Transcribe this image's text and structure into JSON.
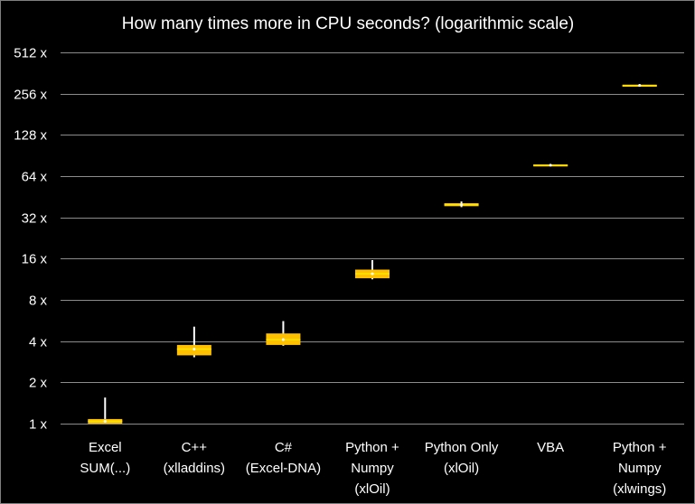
{
  "chart_data": {
    "type": "box",
    "title": "How many times more in CPU seconds? (logarithmic scale)",
    "xlabel": "",
    "ylabel": "",
    "scale": "log2",
    "ylim": [
      1,
      512
    ],
    "y_ticks": [
      1,
      2,
      4,
      8,
      16,
      32,
      64,
      128,
      256,
      512
    ],
    "y_tick_labels": [
      "1 x",
      "2 x",
      "4 x",
      "8 x",
      "16 x",
      "32 x",
      "64 x",
      "128 x",
      "256 x",
      "512 x"
    ],
    "grid": true,
    "legend": "none",
    "box_color": "#ffc000",
    "box_highlight": "#ffe600",
    "whisker_color": "#ffffff",
    "categories": [
      [
        "Excel",
        "SUM(...)"
      ],
      [
        "C++",
        "(xlladdins)"
      ],
      [
        "C#",
        "(Excel-DNA)"
      ],
      [
        "Python +",
        "Numpy",
        "(xlOil)"
      ],
      [
        "Python Only",
        "(xlOil)"
      ],
      [
        "VBA"
      ],
      [
        "Python +",
        "Numpy",
        "(xlwings)"
      ]
    ],
    "boxes": [
      {
        "min": 1.0,
        "q1": 1.0,
        "median": 1.04,
        "q3": 1.08,
        "max": 1.55
      },
      {
        "min": 3.05,
        "q1": 3.15,
        "median": 3.5,
        "q3": 3.75,
        "max": 5.1
      },
      {
        "min": 3.7,
        "q1": 3.75,
        "median": 4.1,
        "q3": 4.55,
        "max": 5.6
      },
      {
        "min": 11.3,
        "q1": 11.5,
        "median": 12.4,
        "q3": 13.3,
        "max": 15.6
      },
      {
        "min": 38.0,
        "q1": 38.6,
        "median": 39.6,
        "q3": 40.6,
        "max": 41.8
      },
      {
        "min": 76.0,
        "q1": 76.5,
        "median": 77.0,
        "q3": 77.6,
        "max": 78.2
      },
      {
        "min": 290.0,
        "q1": 292.0,
        "median": 294.0,
        "q3": 296.0,
        "max": 298.0
      }
    ]
  }
}
